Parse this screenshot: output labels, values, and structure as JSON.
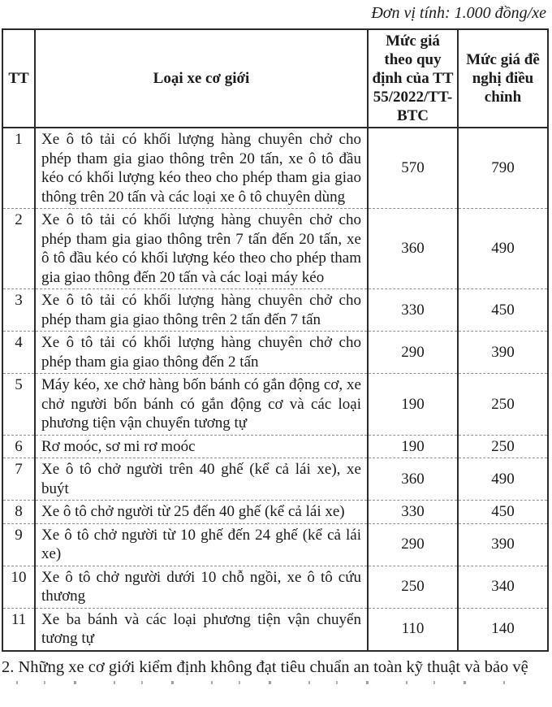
{
  "unit_note": "Đơn vị tính: 1.000 đồng/xe",
  "table": {
    "headers": {
      "tt": "TT",
      "vehicle_type": "Loại xe cơ giới",
      "current_fee": "Mức giá theo quy định của TT 55/2022/TT-BTC",
      "proposed_fee": "Mức giá đề nghị điều chỉnh"
    },
    "rows": [
      {
        "no": "1",
        "type": "Xe ô tô tải có khối lượng hàng chuyên chở cho phép tham gia giao thông trên 20 tấn, xe ô tô đầu kéo có khối lượng kéo theo cho phép tham gia giao thông trên 20 tấn và các loại xe ô tô chuyên dùng",
        "current": "570",
        "proposed": "790"
      },
      {
        "no": "2",
        "type": "Xe ô tô tải có khối lượng hàng chuyên chở cho phép tham gia giao thông trên 7 tấn đến 20 tấn, xe ô tô đầu kéo có khối lượng kéo theo cho phép tham gia giao thông đến 20 tấn và các loại máy kéo",
        "current": "360",
        "proposed": "490"
      },
      {
        "no": "3",
        "type": "Xe ô tô tải có khối lượng hàng chuyên chở cho phép tham gia giao thông trên 2 tấn đến 7 tấn",
        "current": "330",
        "proposed": "450"
      },
      {
        "no": "4",
        "type": "Xe ô tô tải có khối lượng hàng chuyên chở cho phép tham gia giao thông đến 2 tấn",
        "current": "290",
        "proposed": "390"
      },
      {
        "no": "5",
        "type": "Máy kéo, xe chở hàng bốn bánh có gắn động cơ, xe chở người bốn bánh có gắn động cơ và các loại phương tiện vận chuyển tương tự",
        "current": "190",
        "proposed": "250"
      },
      {
        "no": "6",
        "type": "Rơ moóc, sơ mi rơ moóc",
        "current": "190",
        "proposed": "250"
      },
      {
        "no": "7",
        "type": "Xe ô tô chở người trên 40 ghế (kể cả lái xe), xe buýt",
        "current": "360",
        "proposed": "490"
      },
      {
        "no": "8",
        "type": "Xe ô tô chở người từ 25 đến 40 ghế (kể cả lái xe)",
        "current": "330",
        "proposed": "450"
      },
      {
        "no": "9",
        "type": "Xe ô tô chở người từ 10 ghế đến 24 ghế (kể cả lái xe)",
        "current": "290",
        "proposed": "390"
      },
      {
        "no": "10",
        "type": "Xe ô tô chở người dưới 10 chỗ ngồi, xe ô tô cứu thương",
        "current": "250",
        "proposed": "340"
      },
      {
        "no": "11",
        "type": "Xe ba bánh và các loại phương tiện vận chuyển tương tự",
        "current": "110",
        "proposed": "140"
      }
    ]
  },
  "footer_note": "2. Những xe cơ giới kiểm định không đạt tiêu chuẩn an toàn kỹ thuật và bảo vệ",
  "colors": {
    "text": "#1b1b1b",
    "border": "#2a2a2a",
    "row_divider": "#8f8f8f",
    "background": "#ffffff"
  }
}
